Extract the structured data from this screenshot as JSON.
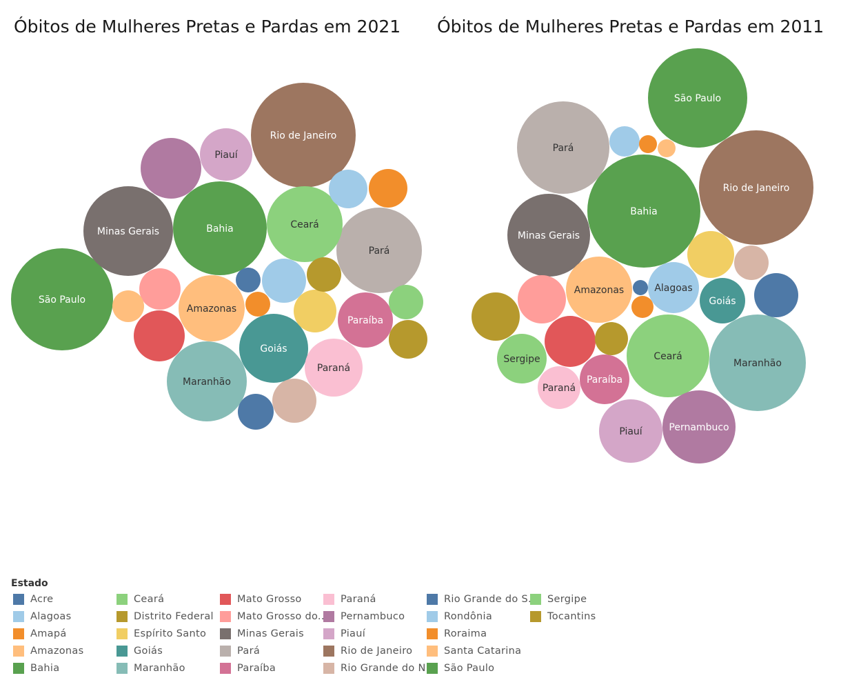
{
  "chart_data": [
    {
      "type": "packed-bubble",
      "title": "Óbitos de Mulheres Pretas e Pardas em 2021",
      "bubbles": [
        {
          "state": "São Paulo",
          "label": "São Paulo"
        },
        {
          "state": "Rio de Janeiro",
          "label": "Rio de Janeiro"
        },
        {
          "state": "Bahia",
          "label": "Bahia"
        },
        {
          "state": "Minas Gerais",
          "label": "Minas Gerais"
        },
        {
          "state": "Pará",
          "label": "Pará"
        },
        {
          "state": "Ceará",
          "label": "Ceará"
        },
        {
          "state": "Maranhão",
          "label": "Maranhão"
        },
        {
          "state": "Goiás",
          "label": "Goiás"
        },
        {
          "state": "Amazonas",
          "label": "Amazonas"
        },
        {
          "state": "Pernambuco",
          "label": ""
        },
        {
          "state": "Paraná",
          "label": "Paraná"
        },
        {
          "state": "Paraíba",
          "label": "Paraíba"
        },
        {
          "state": "Piauí",
          "label": "Piauí"
        },
        {
          "state": "Rio Grande do Norte",
          "label": ""
        },
        {
          "state": "Mato Grosso",
          "label": ""
        },
        {
          "state": "Alagoas",
          "label": ""
        },
        {
          "state": "Espírito Santo",
          "label": ""
        },
        {
          "state": "Mato Grosso do Sul",
          "label": ""
        },
        {
          "state": "Rondônia",
          "label": ""
        },
        {
          "state": "Rio Grande do Sul",
          "label": ""
        },
        {
          "state": "Amapá",
          "label": ""
        },
        {
          "state": "Santa Catarina",
          "label": ""
        },
        {
          "state": "Tocantins",
          "label": ""
        },
        {
          "state": "Sergipe",
          "label": ""
        },
        {
          "state": "Distrito Federal",
          "label": ""
        },
        {
          "state": "Roraima",
          "label": ""
        },
        {
          "state": "Acre",
          "label": ""
        }
      ]
    },
    {
      "type": "packed-bubble",
      "title": "Óbitos de Mulheres Pretas e Pardas em 2011",
      "bubbles": [
        {
          "state": "Bahia",
          "label": "Bahia"
        },
        {
          "state": "Rio de Janeiro",
          "label": "Rio de Janeiro"
        },
        {
          "state": "Maranhão",
          "label": "Maranhão"
        },
        {
          "state": "São Paulo",
          "label": "São Paulo"
        },
        {
          "state": "Pará",
          "label": "Pará"
        },
        {
          "state": "Ceará",
          "label": "Ceará"
        },
        {
          "state": "Minas Gerais",
          "label": "Minas Gerais"
        },
        {
          "state": "Pernambuco",
          "label": "Pernambuco"
        },
        {
          "state": "Amazonas",
          "label": "Amazonas"
        },
        {
          "state": "Piauí",
          "label": "Piauí"
        },
        {
          "state": "Alagoas",
          "label": "Alagoas"
        },
        {
          "state": "Mato Grosso",
          "label": ""
        },
        {
          "state": "Paraíba",
          "label": "Paraíba"
        },
        {
          "state": "Mato Grosso do Sul",
          "label": ""
        },
        {
          "state": "Sergipe",
          "label": "Sergipe"
        },
        {
          "state": "Distrito Federal",
          "label": ""
        },
        {
          "state": "Goiás",
          "label": "Goiás"
        },
        {
          "state": "Espírito Santo",
          "label": ""
        },
        {
          "state": "Rio Grande do Sul",
          "label": ""
        },
        {
          "state": "Paraná",
          "label": "Paraná"
        },
        {
          "state": "Rio Grande do Norte",
          "label": ""
        },
        {
          "state": "Tocantins",
          "label": ""
        },
        {
          "state": "Rondônia",
          "label": ""
        },
        {
          "state": "Amapá",
          "label": ""
        },
        {
          "state": "Santa Catarina",
          "label": ""
        },
        {
          "state": "Roraima",
          "label": ""
        },
        {
          "state": "Acre",
          "label": ""
        }
      ]
    }
  ],
  "legend": {
    "title": "Estado",
    "items": [
      {
        "label": "Acre",
        "color": "#4e79a7"
      },
      {
        "label": "Alagoas",
        "color": "#a0cbe8"
      },
      {
        "label": "Amapá",
        "color": "#f28e2b"
      },
      {
        "label": "Amazonas",
        "color": "#ffbe7d"
      },
      {
        "label": "Bahia",
        "color": "#59a14f"
      },
      {
        "label": "Ceará",
        "color": "#8cd17d"
      },
      {
        "label": "Distrito Federal",
        "color": "#b6992d"
      },
      {
        "label": "Espírito Santo",
        "color": "#f1ce63"
      },
      {
        "label": "Goiás",
        "color": "#499894"
      },
      {
        "label": "Maranhão",
        "color": "#86bcb6"
      },
      {
        "label": "Mato Grosso",
        "color": "#e15759"
      },
      {
        "label": "Mato Grosso do..",
        "color": "#ff9d9a"
      },
      {
        "label": "Minas Gerais",
        "color": "#79706e"
      },
      {
        "label": "Pará",
        "color": "#bab0ac"
      },
      {
        "label": "Paraíba",
        "color": "#d37295"
      },
      {
        "label": "Paraná",
        "color": "#fabfd2"
      },
      {
        "label": "Pernambuco",
        "color": "#b07aa1"
      },
      {
        "label": "Piauí",
        "color": "#d4a6c8"
      },
      {
        "label": "Rio de Janeiro",
        "color": "#9d7660"
      },
      {
        "label": "Rio Grande do N..",
        "color": "#d7b5a6"
      },
      {
        "label": "Rio Grande do S..",
        "color": "#4e79a7"
      },
      {
        "label": "Rondônia",
        "color": "#a0cbe8"
      },
      {
        "label": "Roraima",
        "color": "#f28e2b"
      },
      {
        "label": "Santa Catarina",
        "color": "#ffbe7d"
      },
      {
        "label": "São Paulo",
        "color": "#59a14f"
      },
      {
        "label": "Sergipe",
        "color": "#8cd17d"
      },
      {
        "label": "Tocantins",
        "color": "#b6992d"
      }
    ]
  },
  "state_colors": {
    "Acre": "#4e79a7",
    "Alagoas": "#a0cbe8",
    "Amapá": "#f28e2b",
    "Amazonas": "#ffbe7d",
    "Bahia": "#59a14f",
    "Ceará": "#8cd17d",
    "Distrito Federal": "#b6992d",
    "Espírito Santo": "#f1ce63",
    "Goiás": "#499894",
    "Maranhão": "#86bcb6",
    "Mato Grosso": "#e15759",
    "Mato Grosso do Sul": "#ff9d9a",
    "Minas Gerais": "#79706e",
    "Pará": "#bab0ac",
    "Paraíba": "#d37295",
    "Paraná": "#fabfd2",
    "Pernambuco": "#b07aa1",
    "Piauí": "#d4a6c8",
    "Rio de Janeiro": "#9d7660",
    "Rio Grande do Norte": "#d7b5a6",
    "Rio Grande do Sul": "#4e79a7",
    "Rondônia": "#a0cbe8",
    "Roraima": "#f28e2b",
    "Santa Catarina": "#ffbe7d",
    "São Paulo": "#59a14f",
    "Sergipe": "#8cd17d",
    "Tocantins": "#b6992d"
  },
  "dark_text_states": [
    "Amazonas",
    "Ceará",
    "Paraná",
    "Piauí",
    "Pará",
    "Maranhão",
    "Alagoas",
    "Sergipe",
    "Espírito Santo"
  ]
}
